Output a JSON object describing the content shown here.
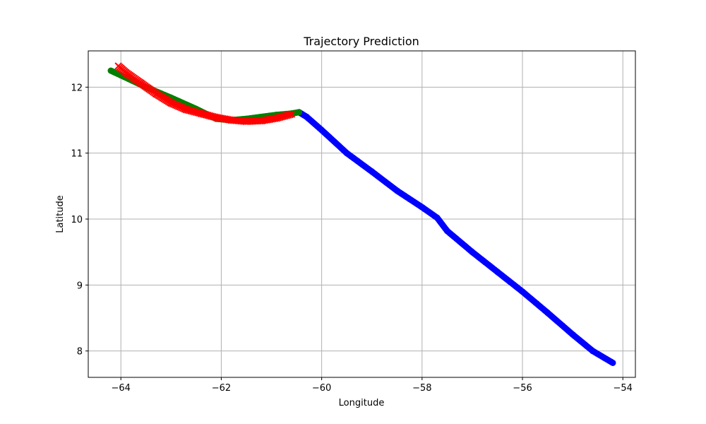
{
  "chart_data": {
    "type": "scatter",
    "title": "Trajectory Prediction",
    "xlabel": "Longitude",
    "ylabel": "Latitude",
    "xlim": [
      -64.65,
      -53.75
    ],
    "ylim": [
      7.6,
      12.55
    ],
    "xticks": [
      -64,
      -62,
      -60,
      -58,
      -56,
      -54
    ],
    "yticks": [
      8,
      9,
      10,
      11,
      12
    ],
    "grid": true,
    "series": [
      {
        "marker": "circle",
        "color": "#0000ff",
        "points": [
          [
            -60.45,
            11.62
          ],
          [
            -60.3,
            11.55
          ],
          [
            -60.0,
            11.35
          ],
          [
            -59.5,
            11.0
          ],
          [
            -59.0,
            10.72
          ],
          [
            -58.5,
            10.43
          ],
          [
            -58.0,
            10.18
          ],
          [
            -57.7,
            10.02
          ],
          [
            -57.5,
            9.82
          ],
          [
            -57.0,
            9.5
          ],
          [
            -56.5,
            9.2
          ],
          [
            -56.0,
            8.9
          ],
          [
            -55.5,
            8.58
          ],
          [
            -55.0,
            8.25
          ],
          [
            -54.6,
            8.0
          ],
          [
            -54.2,
            7.82
          ]
        ]
      },
      {
        "marker": "circle",
        "color": "#008000",
        "points": [
          [
            -64.2,
            12.25
          ],
          [
            -64.0,
            12.18
          ],
          [
            -63.5,
            12.0
          ],
          [
            -63.0,
            11.84
          ],
          [
            -62.5,
            11.67
          ],
          [
            -62.1,
            11.52
          ],
          [
            -61.8,
            11.5
          ],
          [
            -61.5,
            11.52
          ],
          [
            -61.2,
            11.55
          ],
          [
            -60.9,
            11.58
          ],
          [
            -60.6,
            11.6
          ],
          [
            -60.45,
            11.62
          ]
        ]
      },
      {
        "marker": "x",
        "color": "#ff0000",
        "points": [
          [
            -64.05,
            12.32
          ],
          [
            -63.9,
            12.22
          ],
          [
            -63.6,
            12.06
          ],
          [
            -63.3,
            11.9
          ],
          [
            -63.0,
            11.76
          ],
          [
            -62.7,
            11.66
          ],
          [
            -62.4,
            11.6
          ],
          [
            -62.1,
            11.54
          ],
          [
            -61.8,
            11.5
          ],
          [
            -61.5,
            11.48
          ],
          [
            -61.2,
            11.49
          ],
          [
            -60.9,
            11.53
          ],
          [
            -60.6,
            11.59
          ]
        ]
      }
    ]
  }
}
